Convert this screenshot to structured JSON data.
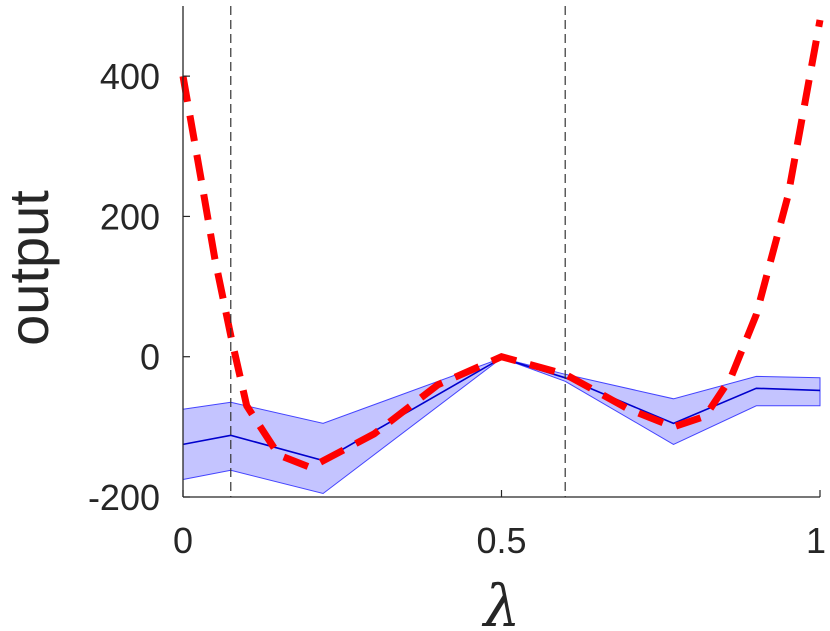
{
  "chart_data": {
    "type": "line",
    "xlabel": "λ",
    "ylabel": "output",
    "xlim": [
      0,
      1
    ],
    "ylim": [
      -200,
      500
    ],
    "xticks": [
      {
        "value": 0,
        "label": "0"
      },
      {
        "value": 0.5,
        "label": "0.5"
      },
      {
        "value": 1,
        "label": "1"
      }
    ],
    "yticks": [
      {
        "value": -200,
        "label": "-200"
      },
      {
        "value": 0,
        "label": "0"
      },
      {
        "value": 200,
        "label": "200"
      },
      {
        "value": 400,
        "label": "400"
      }
    ],
    "grid": false,
    "vlines": [
      0.075,
      0.6
    ],
    "series": [
      {
        "style": "band",
        "color": "#0000ff",
        "x": [
          0,
          0.075,
          0.22,
          0.5,
          0.6,
          0.77,
          0.9,
          1
        ],
        "upper": [
          -75,
          -65,
          -95,
          -2,
          -25,
          -60,
          -28,
          -30
        ],
        "lower": [
          -175,
          -162,
          -195,
          -2,
          -35,
          -125,
          -70,
          -70
        ]
      },
      {
        "style": "solid",
        "color": "#0000cc",
        "x": [
          0,
          0.075,
          0.22,
          0.5,
          0.6,
          0.77,
          0.9,
          1
        ],
        "y": [
          -125,
          -112,
          -148,
          -2,
          -30,
          -95,
          -45,
          -48
        ]
      },
      {
        "style": "dashed",
        "color": "#ff0000",
        "x": [
          0,
          0.03,
          0.05,
          0.075,
          0.1,
          0.15,
          0.2,
          0.3,
          0.4,
          0.5,
          0.6,
          0.7,
          0.77,
          0.82,
          0.86,
          0.9,
          0.95,
          1
        ],
        "y": [
          400,
          245,
          140,
          30,
          -70,
          -140,
          -158,
          -110,
          -40,
          0,
          -25,
          -75,
          -100,
          -85,
          -30,
          60,
          230,
          480
        ]
      }
    ]
  }
}
